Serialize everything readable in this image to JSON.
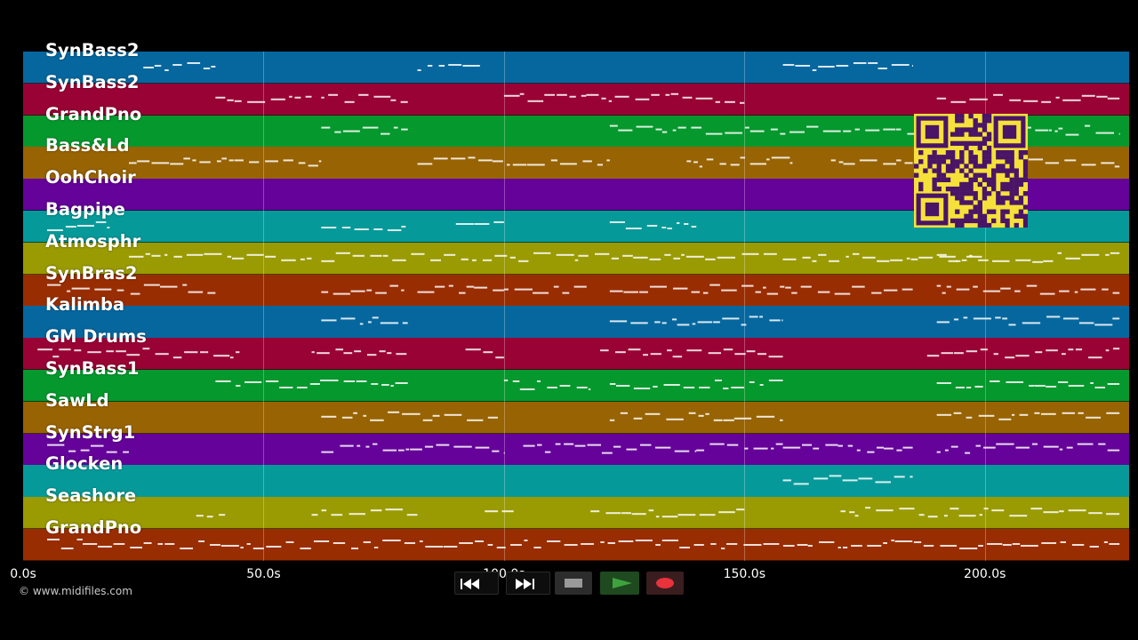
{
  "tracks": [
    {
      "label": "SynBass2",
      "color": "#05679e"
    },
    {
      "label": "SynBass2",
      "color": "#990234"
    },
    {
      "label": "GrandPno",
      "color": "#05982d"
    },
    {
      "label": "Bass&Ld",
      "color": "#986302"
    },
    {
      "label": "OohChoir",
      "color": "#640299"
    },
    {
      "label": "Bagpipe",
      "color": "#059a99"
    },
    {
      "label": "Atmosphr",
      "color": "#9a9a02"
    },
    {
      "label": "SynBras2",
      "color": "#992d02"
    },
    {
      "label": "Kalimba",
      "color": "#05679e"
    },
    {
      "label": "GM Drums",
      "color": "#990234"
    },
    {
      "label": "SynBass1",
      "color": "#05982d"
    },
    {
      "label": "SawLd",
      "color": "#986302"
    },
    {
      "label": "SynStrg1",
      "color": "#640299"
    },
    {
      "label": "Glocken",
      "color": "#059a99"
    },
    {
      "label": "Seashore",
      "color": "#9a9a02"
    },
    {
      "label": "GrandPno",
      "color": "#992d02"
    }
  ],
  "timeline": {
    "start_seconds": 0,
    "end_seconds": 230,
    "ticks": [
      {
        "seconds": 0,
        "label": "0.0s"
      },
      {
        "seconds": 50,
        "label": "50.0s"
      },
      {
        "seconds": 100,
        "label": "100.0s"
      },
      {
        "seconds": 150,
        "label": "150.0s"
      },
      {
        "seconds": 200,
        "label": "200.0s"
      }
    ]
  },
  "credit": "© www.midifiles.com",
  "transport": {
    "rewind_icon": "rewind-icon",
    "fast_forward_icon": "fast-forward-icon",
    "stop_icon": "stop-icon",
    "play_icon": "play-icon",
    "record_icon": "record-icon",
    "play_color": "#3ea33e",
    "record_color": "#e8323c"
  },
  "qr_code": {
    "icon": "qr-code-icon",
    "background_color": "#f5e13a",
    "module_color": "#4a1467"
  }
}
